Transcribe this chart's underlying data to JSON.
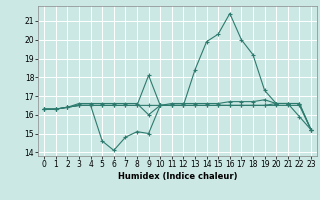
{
  "title": "",
  "xlabel": "Humidex (Indice chaleur)",
  "background_color": "#cce8e4",
  "grid_color": "#ffffff",
  "line_color": "#2d7a6e",
  "xlim": [
    -0.5,
    23.5
  ],
  "ylim": [
    13.8,
    21.8
  ],
  "yticks": [
    14,
    15,
    16,
    17,
    18,
    19,
    20,
    21
  ],
  "xticks": [
    0,
    1,
    2,
    3,
    4,
    5,
    6,
    7,
    8,
    9,
    10,
    11,
    12,
    13,
    14,
    15,
    16,
    17,
    18,
    19,
    20,
    21,
    22,
    23
  ],
  "series": [
    [
      16.3,
      16.3,
      16.4,
      16.5,
      16.5,
      14.6,
      14.1,
      14.8,
      15.1,
      15.0,
      16.5,
      16.5,
      16.5,
      18.4,
      19.9,
      20.3,
      21.4,
      20.0,
      19.2,
      17.3,
      16.6,
      16.6,
      15.9,
      15.2
    ],
    [
      16.3,
      16.3,
      16.4,
      16.5,
      16.5,
      16.5,
      16.5,
      16.5,
      16.5,
      18.1,
      16.5,
      16.6,
      16.6,
      16.6,
      16.6,
      16.6,
      16.7,
      16.7,
      16.7,
      16.8,
      16.6,
      16.6,
      16.6,
      15.2
    ],
    [
      16.3,
      16.3,
      16.4,
      16.6,
      16.6,
      16.6,
      16.6,
      16.6,
      16.6,
      16.0,
      16.5,
      16.5,
      16.5,
      16.5,
      16.5,
      16.5,
      16.5,
      16.5,
      16.5,
      16.5,
      16.6,
      16.6,
      16.6,
      15.2
    ],
    [
      16.3,
      16.3,
      16.4,
      16.5,
      16.5,
      16.5,
      16.5,
      16.5,
      16.5,
      16.5,
      16.5,
      16.5,
      16.5,
      16.5,
      16.5,
      16.5,
      16.5,
      16.5,
      16.5,
      16.5,
      16.5,
      16.5,
      16.5,
      15.2
    ]
  ]
}
